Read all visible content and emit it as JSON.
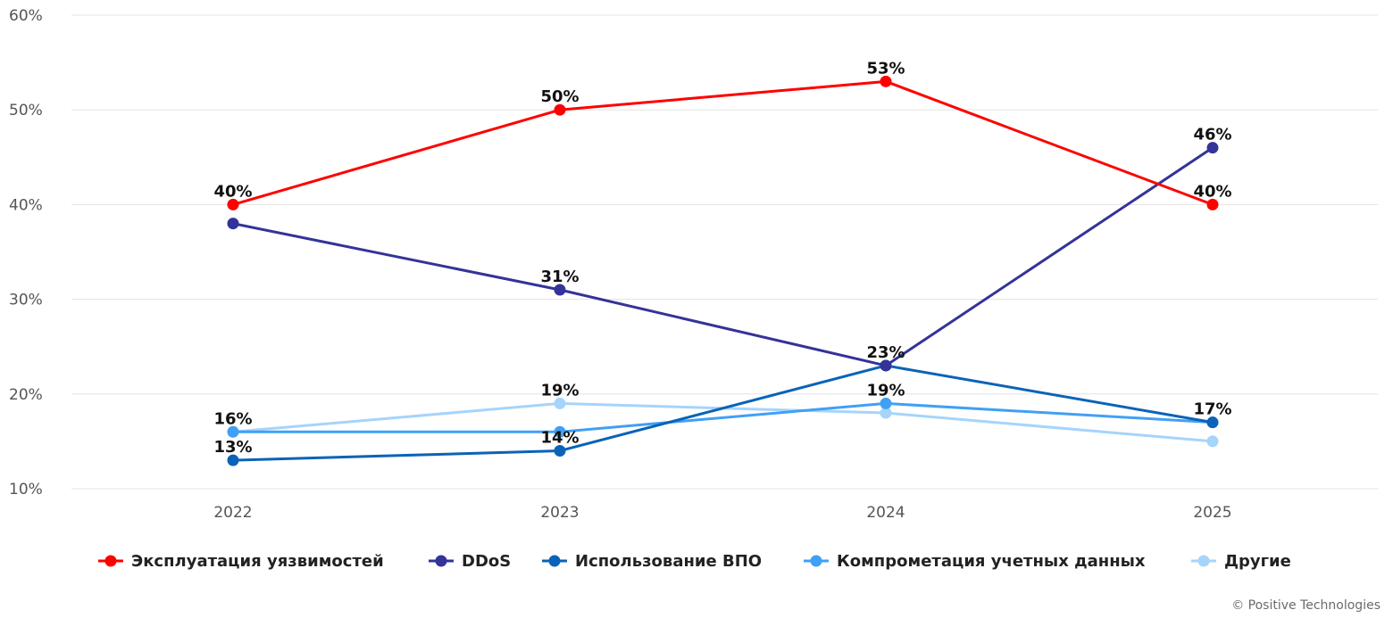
{
  "chart_data": {
    "type": "line",
    "categories": [
      "2022",
      "2023",
      "2024",
      "2025"
    ],
    "ylim": [
      10,
      60
    ],
    "yticks": [
      10,
      20,
      30,
      40,
      50,
      60
    ],
    "ytick_format": "{v}%",
    "grid": "horizontal",
    "legend_position": "bottom",
    "series": [
      {
        "name": "Эксплуатация уязвимостей",
        "color": "#ff0000",
        "values": [
          40,
          50,
          53,
          40
        ],
        "labels": [
          "40%",
          "50%",
          "53%",
          "40%"
        ]
      },
      {
        "name": "DDoS",
        "color": "#333399",
        "values": [
          38,
          31,
          23,
          46
        ],
        "labels": [
          "",
          "31%",
          "",
          "46%"
        ]
      },
      {
        "name": "Использование ВПО",
        "color": "#0a63b8",
        "values": [
          13,
          14,
          23,
          17
        ],
        "labels": [
          "13%",
          "14%",
          "23%",
          "17%"
        ]
      },
      {
        "name": "Компрометация учетных данных",
        "color": "#40a0f5",
        "values": [
          16,
          16,
          19,
          17
        ],
        "labels": [
          "16%",
          "",
          "19%",
          ""
        ]
      },
      {
        "name": "Другие",
        "color": "#a6d4fb",
        "values": [
          16,
          19,
          18,
          15
        ],
        "labels": [
          "",
          "19%",
          "",
          ""
        ]
      }
    ]
  },
  "footer": {
    "copyright": "© Positive Technologies"
  }
}
